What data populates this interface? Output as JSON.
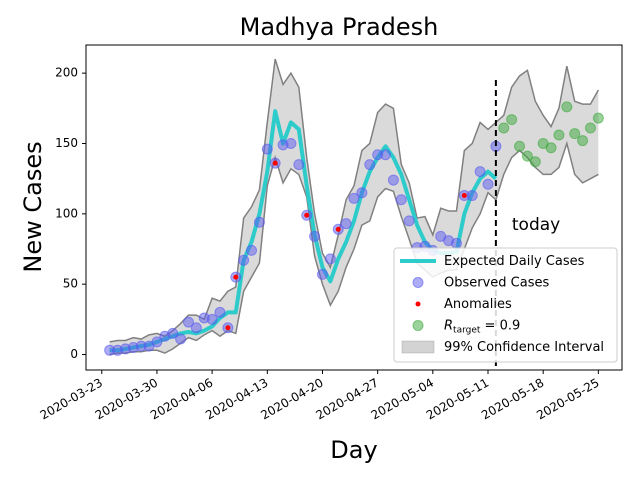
{
  "chart_data": {
    "type": "line",
    "title": "Madhya Pradesh",
    "x_label": "Day",
    "y_label": "New Cases",
    "x": [
      "2020-03-24",
      "2020-03-25",
      "2020-03-26",
      "2020-03-27",
      "2020-03-28",
      "2020-03-29",
      "2020-03-30",
      "2020-03-31",
      "2020-04-01",
      "2020-04-02",
      "2020-04-03",
      "2020-04-04",
      "2020-04-05",
      "2020-04-06",
      "2020-04-07",
      "2020-04-08",
      "2020-04-09",
      "2020-04-10",
      "2020-04-11",
      "2020-04-12",
      "2020-04-13",
      "2020-04-14",
      "2020-04-15",
      "2020-04-16",
      "2020-04-17",
      "2020-04-18",
      "2020-04-19",
      "2020-04-20",
      "2020-04-21",
      "2020-04-22",
      "2020-04-23",
      "2020-04-24",
      "2020-04-25",
      "2020-04-26",
      "2020-04-27",
      "2020-04-28",
      "2020-04-29",
      "2020-04-30",
      "2020-05-01",
      "2020-05-02",
      "2020-05-03",
      "2020-05-04",
      "2020-05-05",
      "2020-05-06",
      "2020-05-07",
      "2020-05-08",
      "2020-05-09",
      "2020-05-10",
      "2020-05-11",
      "2020-05-12"
    ],
    "series": [
      {
        "name": "Expected Daily Cases",
        "kind": "line",
        "color": "#2ecbcb",
        "values": [
          3,
          3,
          4,
          5,
          6,
          7,
          9,
          11,
          13,
          15,
          16,
          15,
          17,
          20,
          26,
          30,
          30,
          67,
          80,
          100,
          130,
          173,
          150,
          165,
          160,
          120,
          85,
          62,
          52,
          68,
          80,
          95,
          115,
          130,
          140,
          148,
          140,
          128,
          110,
          92,
          80,
          74,
          72,
          72,
          73,
          100,
          115,
          125,
          130,
          125
        ]
      },
      {
        "name": "Observed Cases",
        "kind": "points",
        "color": "#5a5af0",
        "values": [
          3,
          3,
          4,
          5,
          6,
          6,
          9,
          13,
          15,
          11,
          23,
          19,
          26,
          25,
          30,
          19,
          55,
          67,
          74,
          94,
          146,
          136,
          149,
          150,
          135,
          99,
          84,
          57,
          68,
          89,
          93,
          111,
          115,
          135,
          142,
          142,
          124,
          110,
          95,
          76,
          77,
          74,
          84,
          81,
          79,
          113,
          113,
          130,
          121,
          148
        ]
      },
      {
        "name": "Anomalies",
        "kind": "dots",
        "color": "#ff0000",
        "x": [
          "2020-04-08",
          "2020-04-09",
          "2020-04-14",
          "2020-04-18",
          "2020-04-22",
          "2020-05-08"
        ],
        "values": [
          19,
          55,
          136,
          99,
          89,
          113
        ]
      },
      {
        "name": "R",
        "name_sub": "target",
        "name_rest": " = 0.9",
        "kind": "points",
        "color": "#3aa83a",
        "x": [
          "2020-05-13",
          "2020-05-14",
          "2020-05-15",
          "2020-05-16",
          "2020-05-17",
          "2020-05-18",
          "2020-05-19",
          "2020-05-20",
          "2020-05-21",
          "2020-05-22",
          "2020-05-23",
          "2020-05-24",
          "2020-05-25"
        ],
        "values": [
          161,
          167,
          148,
          141,
          137,
          150,
          147,
          156,
          176,
          157,
          152,
          161,
          168
        ]
      }
    ],
    "band": {
      "name": "99% Confidence Interval",
      "color": "#d3d3d3",
      "edge": "#808080",
      "x": [
        "2020-03-24",
        "2020-03-25",
        "2020-03-26",
        "2020-03-27",
        "2020-03-28",
        "2020-03-29",
        "2020-03-30",
        "2020-03-31",
        "2020-04-01",
        "2020-04-02",
        "2020-04-03",
        "2020-04-04",
        "2020-04-05",
        "2020-04-06",
        "2020-04-07",
        "2020-04-08",
        "2020-04-09",
        "2020-04-10",
        "2020-04-11",
        "2020-04-12",
        "2020-04-13",
        "2020-04-14",
        "2020-04-15",
        "2020-04-16",
        "2020-04-17",
        "2020-04-18",
        "2020-04-19",
        "2020-04-20",
        "2020-04-21",
        "2020-04-22",
        "2020-04-23",
        "2020-04-24",
        "2020-04-25",
        "2020-04-26",
        "2020-04-27",
        "2020-04-28",
        "2020-04-29",
        "2020-04-30",
        "2020-05-01",
        "2020-05-02",
        "2020-05-03",
        "2020-05-04",
        "2020-05-05",
        "2020-05-06",
        "2020-05-07",
        "2020-05-08",
        "2020-05-09",
        "2020-05-10",
        "2020-05-11",
        "2020-05-12",
        "2020-05-13",
        "2020-05-14",
        "2020-05-15",
        "2020-05-16",
        "2020-05-17",
        "2020-05-18",
        "2020-05-19",
        "2020-05-20",
        "2020-05-21",
        "2020-05-22",
        "2020-05-23",
        "2020-05-24",
        "2020-05-25"
      ],
      "lower": [
        0,
        1,
        1,
        2,
        2,
        3,
        3,
        1,
        4,
        8,
        12,
        10,
        14,
        17,
        13,
        17,
        15,
        45,
        55,
        65,
        120,
        140,
        122,
        132,
        128,
        112,
        70,
        50,
        35,
        45,
        62,
        75,
        92,
        95,
        112,
        118,
        116,
        98,
        82,
        65,
        60,
        55,
        58,
        60,
        60,
        75,
        90,
        100,
        115,
        110,
        128,
        140,
        145,
        140,
        133,
        128,
        128,
        133,
        150,
        128,
        122,
        125,
        128
      ],
      "upper": [
        9,
        10,
        10,
        12,
        11,
        14,
        15,
        13,
        17,
        22,
        28,
        28,
        25,
        40,
        38,
        45,
        48,
        97,
        105,
        117,
        165,
        210,
        192,
        200,
        190,
        140,
        100,
        72,
        62,
        85,
        110,
        120,
        145,
        150,
        172,
        178,
        175,
        135,
        122,
        97,
        98,
        85,
        104,
        102,
        102,
        145,
        150,
        165,
        160,
        165,
        170,
        190,
        198,
        202,
        180,
        170,
        162,
        175,
        205,
        180,
        178,
        178,
        188
      ]
    },
    "today": {
      "x": "2020-05-12",
      "label": "today"
    },
    "xlim": [
      "2020-03-21",
      "2020-05-28"
    ],
    "ylim": [
      -11,
      220
    ],
    "xticks": [
      "2020-03-23",
      "2020-03-30",
      "2020-04-06",
      "2020-04-13",
      "2020-04-20",
      "2020-04-27",
      "2020-05-04",
      "2020-05-11",
      "2020-05-18",
      "2020-05-25"
    ],
    "yticks": [
      0,
      50,
      100,
      150,
      200
    ],
    "legend": "lower right"
  }
}
